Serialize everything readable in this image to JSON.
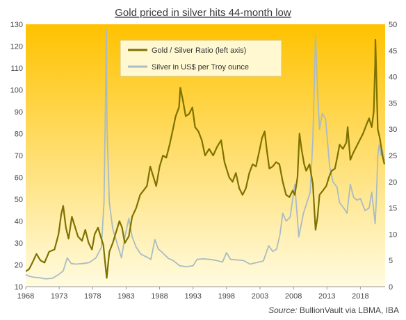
{
  "chart_data": {
    "type": "line",
    "title": "Gold priced in silver hits 44-month low",
    "source_label": "Source:",
    "source_text": "BullionVault via LBMA, IBA",
    "x_ticks": [
      "1968",
      "1973",
      "1978",
      "1983",
      "1988",
      "1993",
      "1998",
      "2003",
      "2008",
      "2013",
      "2018"
    ],
    "y_left_ticks": [
      "10",
      "20",
      "30",
      "40",
      "50",
      "60",
      "70",
      "80",
      "90",
      "100",
      "110",
      "120",
      "130"
    ],
    "y_right_ticks": [
      "0",
      "5",
      "10",
      "15",
      "20",
      "25",
      "30",
      "35",
      "40",
      "45",
      "50"
    ],
    "xlim": [
      1968,
      2021.7
    ],
    "ylim_left": [
      10,
      130
    ],
    "ylim_right": [
      0,
      50
    ],
    "legend_position": "top-center",
    "background_gradient": [
      "#ffc200",
      "#fffbe0"
    ],
    "series": [
      {
        "name": "Gold / Silver Ratio (left axis)",
        "axis": "left",
        "color": "#7d7200",
        "points": [
          [
            1968.0,
            17
          ],
          [
            1968.5,
            18
          ],
          [
            1969.0,
            21
          ],
          [
            1969.6,
            25
          ],
          [
            1970.2,
            22
          ],
          [
            1970.8,
            21
          ],
          [
            1971.5,
            26
          ],
          [
            1972.3,
            27
          ],
          [
            1972.9,
            34
          ],
          [
            1973.3,
            43
          ],
          [
            1973.6,
            47
          ],
          [
            1974.0,
            37
          ],
          [
            1974.4,
            32
          ],
          [
            1974.9,
            42
          ],
          [
            1975.3,
            38
          ],
          [
            1975.8,
            33
          ],
          [
            1976.4,
            31
          ],
          [
            1976.9,
            36
          ],
          [
            1977.4,
            30
          ],
          [
            1977.9,
            27
          ],
          [
            1978.3,
            34
          ],
          [
            1978.8,
            37
          ],
          [
            1979.2,
            33
          ],
          [
            1979.6,
            29
          ],
          [
            1980.0,
            17
          ],
          [
            1980.1,
            14
          ],
          [
            1980.5,
            26
          ],
          [
            1981.0,
            30
          ],
          [
            1981.5,
            35
          ],
          [
            1982.0,
            40
          ],
          [
            1982.4,
            37
          ],
          [
            1982.8,
            30
          ],
          [
            1983.4,
            33
          ],
          [
            1983.9,
            42
          ],
          [
            1984.5,
            46
          ],
          [
            1985.1,
            52
          ],
          [
            1985.6,
            54
          ],
          [
            1986.1,
            56
          ],
          [
            1986.6,
            65
          ],
          [
            1987.1,
            60
          ],
          [
            1987.5,
            56
          ],
          [
            1988.0,
            65
          ],
          [
            1988.5,
            70
          ],
          [
            1989.0,
            69
          ],
          [
            1989.5,
            75
          ],
          [
            1990.0,
            82
          ],
          [
            1990.4,
            88
          ],
          [
            1990.9,
            92
          ],
          [
            1991.1,
            101
          ],
          [
            1991.5,
            95
          ],
          [
            1991.9,
            88
          ],
          [
            1992.4,
            89
          ],
          [
            1992.9,
            92
          ],
          [
            1993.3,
            83
          ],
          [
            1993.8,
            81
          ],
          [
            1994.3,
            77
          ],
          [
            1994.8,
            70
          ],
          [
            1995.4,
            73
          ],
          [
            1996.0,
            70
          ],
          [
            1996.6,
            74
          ],
          [
            1997.2,
            77
          ],
          [
            1997.7,
            67
          ],
          [
            1998.0,
            64
          ],
          [
            1998.4,
            60
          ],
          [
            1998.9,
            58
          ],
          [
            1999.4,
            62
          ],
          [
            1999.9,
            55
          ],
          [
            2000.4,
            52
          ],
          [
            2000.9,
            55
          ],
          [
            2001.4,
            62
          ],
          [
            2001.9,
            66
          ],
          [
            2002.4,
            65
          ],
          [
            2002.9,
            72
          ],
          [
            2003.3,
            78
          ],
          [
            2003.7,
            81
          ],
          [
            2004.0,
            73
          ],
          [
            2004.4,
            64
          ],
          [
            2004.9,
            65
          ],
          [
            2005.4,
            67
          ],
          [
            2005.9,
            66
          ],
          [
            2006.4,
            58
          ],
          [
            2006.9,
            52
          ],
          [
            2007.4,
            51
          ],
          [
            2007.9,
            54
          ],
          [
            2008.2,
            52
          ],
          [
            2008.6,
            60
          ],
          [
            2008.9,
            80
          ],
          [
            2009.2,
            73
          ],
          [
            2009.6,
            66
          ],
          [
            2009.9,
            63
          ],
          [
            2010.4,
            66
          ],
          [
            2010.9,
            57
          ],
          [
            2011.3,
            36
          ],
          [
            2011.6,
            42
          ],
          [
            2011.9,
            52
          ],
          [
            2012.4,
            54
          ],
          [
            2012.9,
            56
          ],
          [
            2013.3,
            60
          ],
          [
            2013.7,
            63
          ],
          [
            2014.2,
            64
          ],
          [
            2014.6,
            70
          ],
          [
            2014.9,
            75
          ],
          [
            2015.4,
            73
          ],
          [
            2015.9,
            76
          ],
          [
            2016.1,
            83
          ],
          [
            2016.5,
            68
          ],
          [
            2016.9,
            71
          ],
          [
            2017.4,
            74
          ],
          [
            2017.9,
            77
          ],
          [
            2018.4,
            80
          ],
          [
            2018.9,
            84
          ],
          [
            2019.3,
            87
          ],
          [
            2019.7,
            83
          ],
          [
            2020.0,
            90
          ],
          [
            2020.2,
            112
          ],
          [
            2020.25,
            123
          ],
          [
            2020.4,
            105
          ],
          [
            2020.6,
            82
          ],
          [
            2020.9,
            78
          ],
          [
            2021.3,
            70
          ],
          [
            2021.6,
            66
          ]
        ]
      },
      {
        "name": "Silver in US$ per Troy ounce",
        "axis": "right",
        "color": "#a9bcc3",
        "points": [
          [
            1968.0,
            2.3
          ],
          [
            1968.5,
            2.0
          ],
          [
            1969.2,
            1.8
          ],
          [
            1970.0,
            1.7
          ],
          [
            1971.0,
            1.5
          ],
          [
            1972.0,
            1.6
          ],
          [
            1972.9,
            2.3
          ],
          [
            1973.6,
            3.0
          ],
          [
            1974.2,
            5.5
          ],
          [
            1974.8,
            4.4
          ],
          [
            1975.5,
            4.3
          ],
          [
            1976.5,
            4.4
          ],
          [
            1977.5,
            4.6
          ],
          [
            1978.5,
            5.5
          ],
          [
            1979.3,
            7.5
          ],
          [
            1979.7,
            16
          ],
          [
            1979.95,
            38
          ],
          [
            1980.05,
            49
          ],
          [
            1980.15,
            30
          ],
          [
            1980.5,
            16
          ],
          [
            1981.0,
            11
          ],
          [
            1981.6,
            8.5
          ],
          [
            1982.3,
            5.5
          ],
          [
            1982.9,
            10
          ],
          [
            1983.4,
            13
          ],
          [
            1983.9,
            9.5
          ],
          [
            1984.5,
            7.5
          ],
          [
            1985.2,
            6.2
          ],
          [
            1986.0,
            5.7
          ],
          [
            1986.7,
            5.2
          ],
          [
            1987.3,
            9.0
          ],
          [
            1987.8,
            7.2
          ],
          [
            1988.5,
            6.4
          ],
          [
            1989.3,
            5.4
          ],
          [
            1990.0,
            5.0
          ],
          [
            1991.0,
            4.0
          ],
          [
            1992.0,
            3.8
          ],
          [
            1993.0,
            4.0
          ],
          [
            1993.6,
            5.2
          ],
          [
            1994.5,
            5.3
          ],
          [
            1995.5,
            5.2
          ],
          [
            1996.5,
            5.0
          ],
          [
            1997.4,
            4.7
          ],
          [
            1998.0,
            6.5
          ],
          [
            1998.6,
            5.2
          ],
          [
            1999.5,
            5.1
          ],
          [
            2000.5,
            5.0
          ],
          [
            2001.5,
            4.3
          ],
          [
            2002.5,
            4.6
          ],
          [
            2003.5,
            4.9
          ],
          [
            2004.3,
            7.8
          ],
          [
            2004.9,
            6.7
          ],
          [
            2005.5,
            7.2
          ],
          [
            2006.0,
            10
          ],
          [
            2006.4,
            14
          ],
          [
            2006.9,
            12.5
          ],
          [
            2007.5,
            13.2
          ],
          [
            2008.2,
            19.5
          ],
          [
            2008.8,
            9.5
          ],
          [
            2009.5,
            14
          ],
          [
            2010.5,
            18
          ],
          [
            2010.9,
            28
          ],
          [
            2011.3,
            48
          ],
          [
            2011.6,
            37
          ],
          [
            2011.9,
            30
          ],
          [
            2012.3,
            33
          ],
          [
            2012.8,
            32
          ],
          [
            2013.4,
            23
          ],
          [
            2013.9,
            20
          ],
          [
            2014.5,
            19
          ],
          [
            2014.9,
            16
          ],
          [
            2015.5,
            15
          ],
          [
            2016.0,
            14
          ],
          [
            2016.5,
            19.5
          ],
          [
            2017.0,
            17
          ],
          [
            2017.5,
            16.5
          ],
          [
            2018.0,
            16.8
          ],
          [
            2018.7,
            14.5
          ],
          [
            2019.3,
            15
          ],
          [
            2019.7,
            18
          ],
          [
            2020.2,
            12
          ],
          [
            2020.4,
            17
          ],
          [
            2020.6,
            25
          ],
          [
            2020.8,
            27
          ],
          [
            2021.1,
            25
          ],
          [
            2021.3,
            26
          ],
          [
            2021.6,
            24
          ]
        ]
      }
    ]
  }
}
